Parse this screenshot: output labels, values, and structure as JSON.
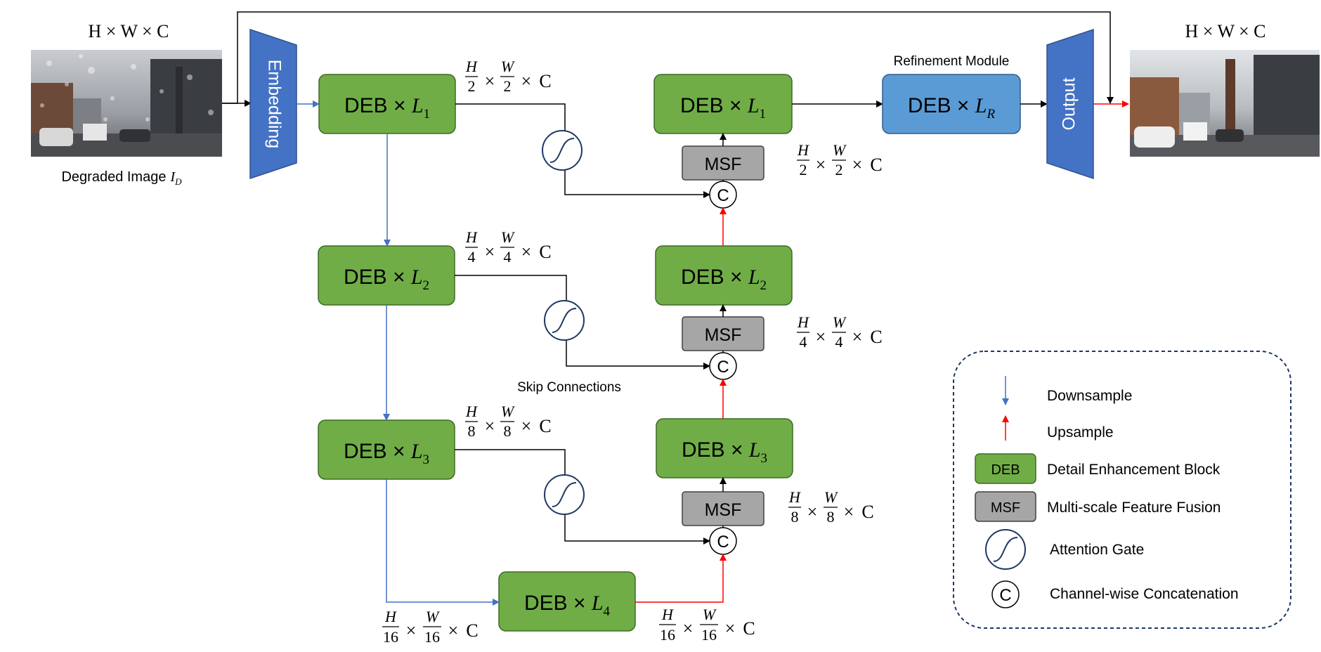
{
  "input": {
    "dims": "H × W × C",
    "caption": "Degraded Image",
    "caption_sub": "D",
    "caption_var": "I"
  },
  "output": {
    "dims": "H × W × C"
  },
  "embedding_label": "Embedding",
  "output_label": "Output",
  "refinement_title": "Refinement Module",
  "skip_label": "Skip Connections",
  "blocks": {
    "enc1": {
      "text": "DEB × ",
      "var": "L",
      "sub": "1"
    },
    "enc2": {
      "text": "DEB × ",
      "var": "L",
      "sub": "2"
    },
    "enc3": {
      "text": "DEB × ",
      "var": "L",
      "sub": "3"
    },
    "bottleneck": {
      "text": "DEB × ",
      "var": "L",
      "sub": "4"
    },
    "dec3": {
      "text": "DEB × ",
      "var": "L",
      "sub": "3"
    },
    "dec2": {
      "text": "DEB × ",
      "var": "L",
      "sub": "2"
    },
    "dec1": {
      "text": "DEB × ",
      "var": "L",
      "sub": "1"
    },
    "refine": {
      "text": "DEB × ",
      "var": "L",
      "sub": "R"
    }
  },
  "msf_label": "MSF",
  "concat_symbol": "C",
  "scales": {
    "s2": {
      "h": "H",
      "w": "W",
      "den": "2",
      "times": "×",
      "c": "C"
    },
    "s4": {
      "h": "H",
      "w": "W",
      "den": "4",
      "times": "×",
      "c": "C"
    },
    "s8": {
      "h": "H",
      "w": "W",
      "den": "8",
      "times": "×",
      "c": "C"
    },
    "s16": {
      "h": "H",
      "w": "W",
      "den": "16",
      "times": "×",
      "c": "C"
    }
  },
  "legend": {
    "downsample": "Downsample",
    "upsample": "Upsample",
    "deb_box": "DEB",
    "deb": "Detail Enhancement Block",
    "msf_box": "MSF",
    "msf": "Multi-scale Feature Fusion",
    "gate": "Attention Gate",
    "concat_symbol": "C",
    "concat": "Channel-wise Concatenation"
  },
  "colors": {
    "deb_fill": "#70AD47",
    "deb_stroke": "#3E6B23",
    "msf_fill": "#A6A6A6",
    "trapezoid_fill": "#4472C4",
    "refine_fill": "#5B9BD5",
    "down_arrow": "#4472C4",
    "up_arrow": "#FF0000",
    "navy": "#1F3864"
  }
}
